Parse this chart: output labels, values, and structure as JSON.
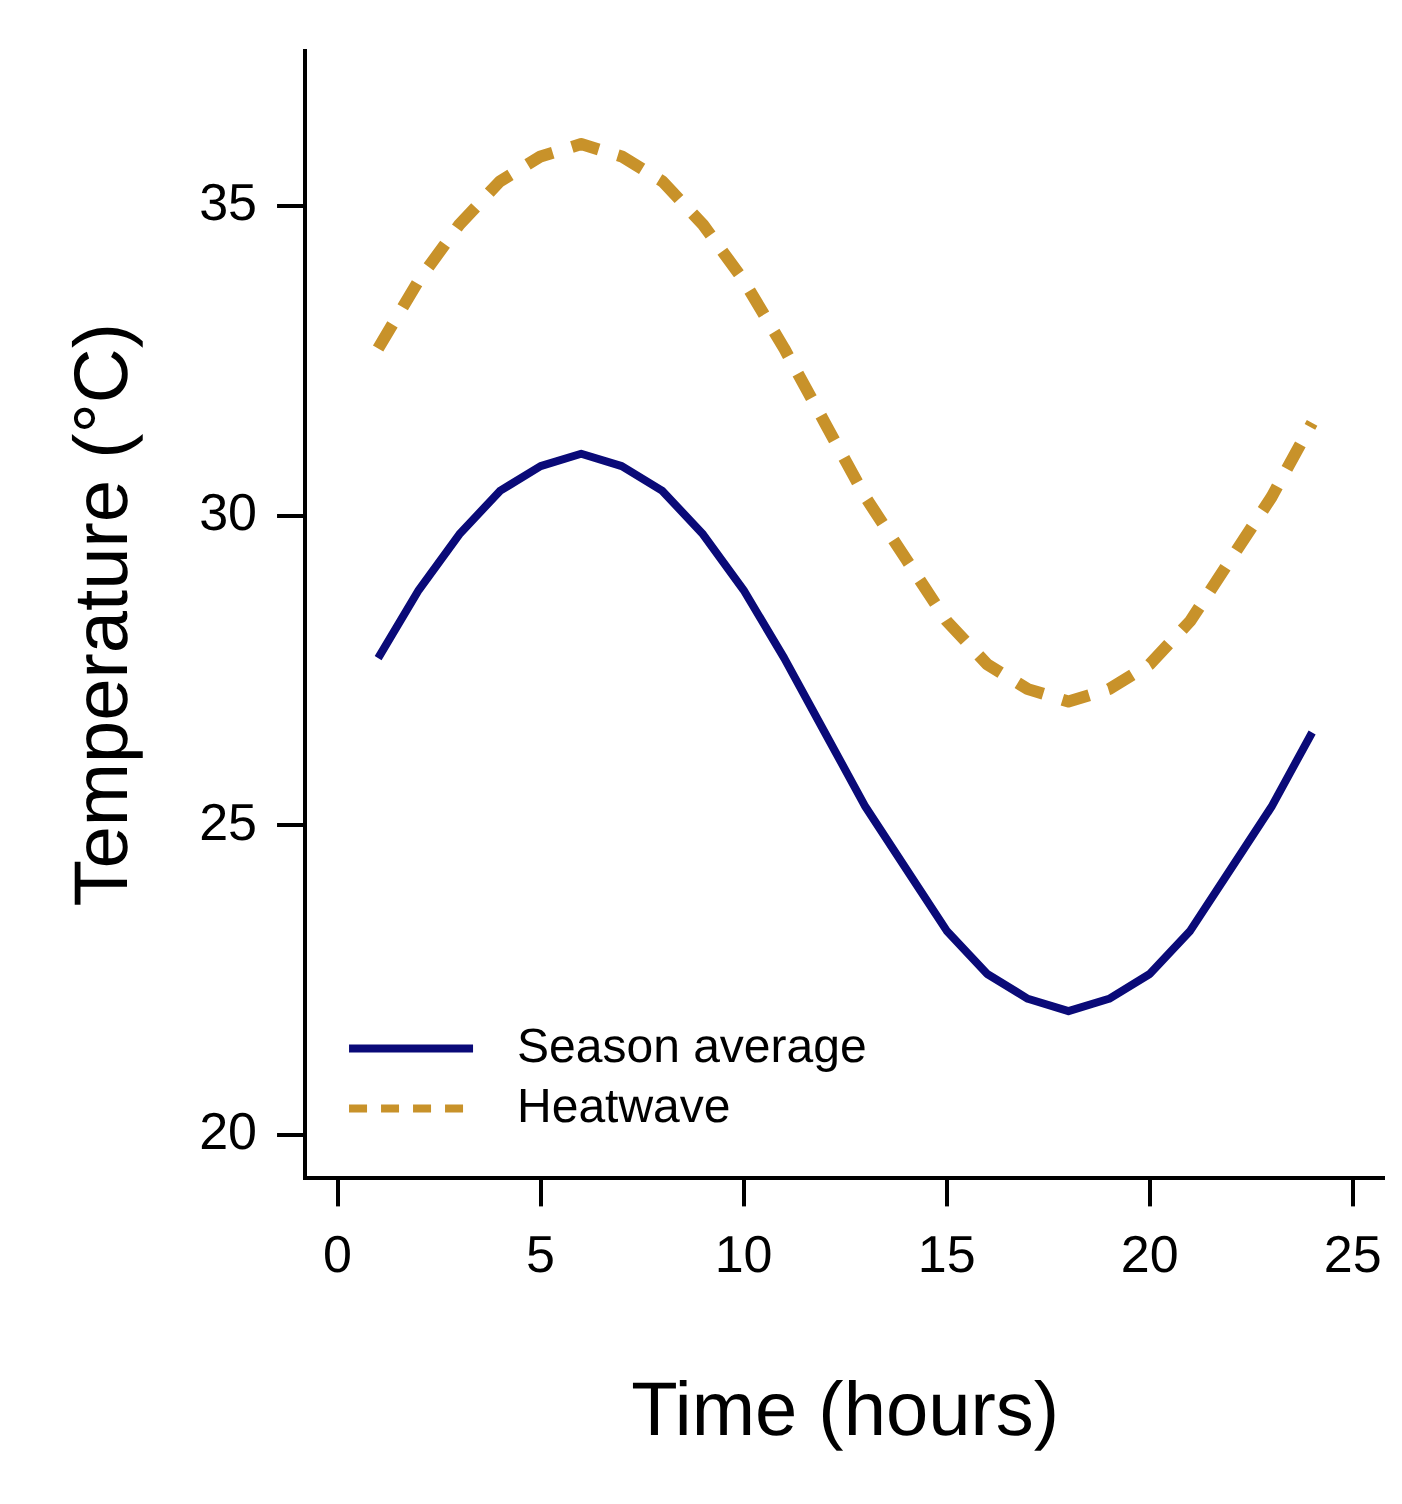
{
  "chart_data": {
    "type": "line",
    "xlabel": "Time (hours)",
    "ylabel": "Temperature (°C)",
    "x": [
      1,
      2,
      3,
      4,
      5,
      6,
      7,
      8,
      9,
      10,
      11,
      12,
      13,
      14,
      15,
      16,
      17,
      18,
      19,
      20,
      21,
      22,
      23,
      24
    ],
    "series": [
      {
        "name": "Season average",
        "color": "#0a0a78",
        "line_style": "solid",
        "values": [
          27.7,
          28.8,
          29.7,
          30.4,
          30.8,
          31.0,
          30.8,
          30.4,
          29.7,
          28.8,
          27.7,
          26.5,
          25.3,
          24.3,
          23.3,
          22.6,
          22.2,
          22.0,
          22.2,
          22.6,
          23.3,
          24.3,
          25.3,
          26.5
        ]
      },
      {
        "name": "Heatwave",
        "color": "#c8922a",
        "line_style": "dashed",
        "values": [
          32.7,
          33.8,
          34.7,
          35.4,
          35.8,
          36.0,
          35.8,
          35.4,
          34.7,
          33.8,
          32.7,
          31.5,
          30.3,
          29.3,
          28.3,
          27.6,
          27.2,
          27.0,
          27.2,
          27.6,
          28.3,
          29.3,
          30.3,
          31.5
        ]
      }
    ],
    "xlim": [
      -0.8,
      25.8
    ],
    "xticks": [
      0,
      5,
      10,
      15,
      20,
      25
    ],
    "ylim": [
      19.3,
      37.5
    ],
    "yticks": [
      20,
      25,
      30,
      35
    ],
    "grid": false,
    "legend": "bottom left",
    "marker": "none"
  }
}
